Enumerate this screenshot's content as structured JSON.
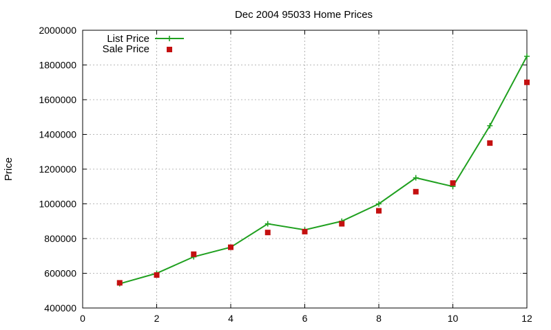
{
  "chart_data": {
    "type": "line",
    "title": "Dec 2004 95033 Home Prices",
    "xlabel": "",
    "ylabel": "Price",
    "xlim": [
      0,
      12
    ],
    "ylim": [
      400000,
      2000000
    ],
    "x_ticks": [
      "0",
      "2",
      "4",
      "6",
      "8",
      "10",
      "12"
    ],
    "y_ticks": [
      "400000",
      "600000",
      "800000",
      "1000000",
      "1200000",
      "1400000",
      "1600000",
      "1800000",
      "2000000"
    ],
    "grid": true,
    "legend_position": "top-left",
    "series": [
      {
        "name": "List Price",
        "style": "line+cross",
        "color": "#1fa01f",
        "x": [
          1,
          2,
          3,
          4,
          5,
          6,
          7,
          8,
          9,
          10,
          11,
          12
        ],
        "values": [
          540000,
          600000,
          695000,
          750000,
          885000,
          850000,
          900000,
          1000000,
          1150000,
          1100000,
          1450000,
          1850000
        ]
      },
      {
        "name": "Sale Price",
        "style": "square",
        "color": "#c41010",
        "x": [
          1,
          2,
          3,
          4,
          5,
          6,
          7,
          8,
          9,
          10,
          11,
          12
        ],
        "values": [
          545000,
          590000,
          710000,
          750000,
          835000,
          840000,
          885000,
          960000,
          1070000,
          1120000,
          1350000,
          1700000
        ]
      }
    ]
  }
}
